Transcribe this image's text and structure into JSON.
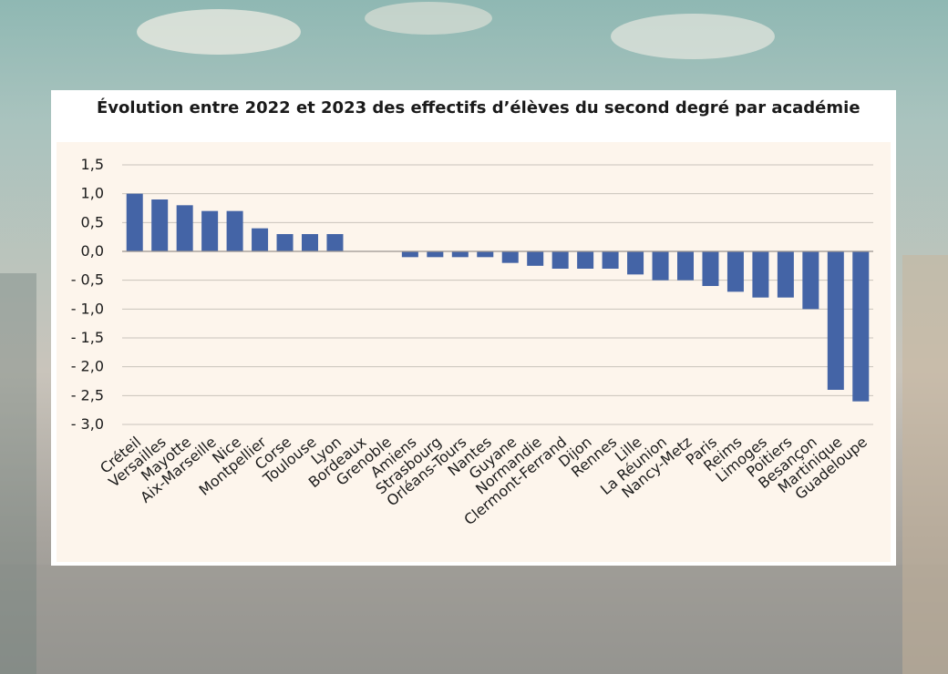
{
  "chart_data": {
    "type": "bar",
    "title": "Évolution entre 2022 et 2023 des effectifs d’élèves du second degré par académie",
    "xlabel": "",
    "ylabel": "",
    "categories": [
      "Créteil",
      "Versailles",
      "Mayotte",
      "Aix-Marseille",
      "Nice",
      "Montpellier",
      "Corse",
      "Toulouse",
      "Lyon",
      "Bordeaux",
      "Grenoble",
      "Amiens",
      "Strasbourg",
      "Orléans-Tours",
      "Nantes",
      "Guyane",
      "Normandie",
      "Clermont-Ferrand",
      "Dijon",
      "Rennes",
      "Lille",
      "La Réunion",
      "Nancy-Metz",
      "Paris",
      "Reims",
      "Limoges",
      "Poitiers",
      "Besançon",
      "Martinique",
      "Guadeloupe"
    ],
    "values": [
      1.0,
      0.9,
      0.8,
      0.7,
      0.7,
      0.4,
      0.3,
      0.3,
      0.3,
      0.0,
      0.0,
      -0.1,
      -0.1,
      -0.1,
      -0.1,
      -0.2,
      -0.25,
      -0.3,
      -0.3,
      -0.3,
      -0.4,
      -0.5,
      -0.5,
      -0.6,
      -0.7,
      -0.8,
      -0.8,
      -1.0,
      -2.4,
      -2.6
    ],
    "yticks": [
      "1,5",
      "1,0",
      "0,5",
      "0,0",
      "- 0,5",
      "- 1,0",
      "- 1,5",
      "- 2,0",
      "- 2,5",
      "- 3,0"
    ],
    "ytick_values": [
      1.5,
      1.0,
      0.5,
      0.0,
      -0.5,
      -1.0,
      -1.5,
      -2.0,
      -2.5,
      -3.0
    ],
    "ylim": [
      -3.0,
      1.5
    ],
    "grid": true,
    "legend": "none",
    "bar_color": "#4464a6"
  }
}
